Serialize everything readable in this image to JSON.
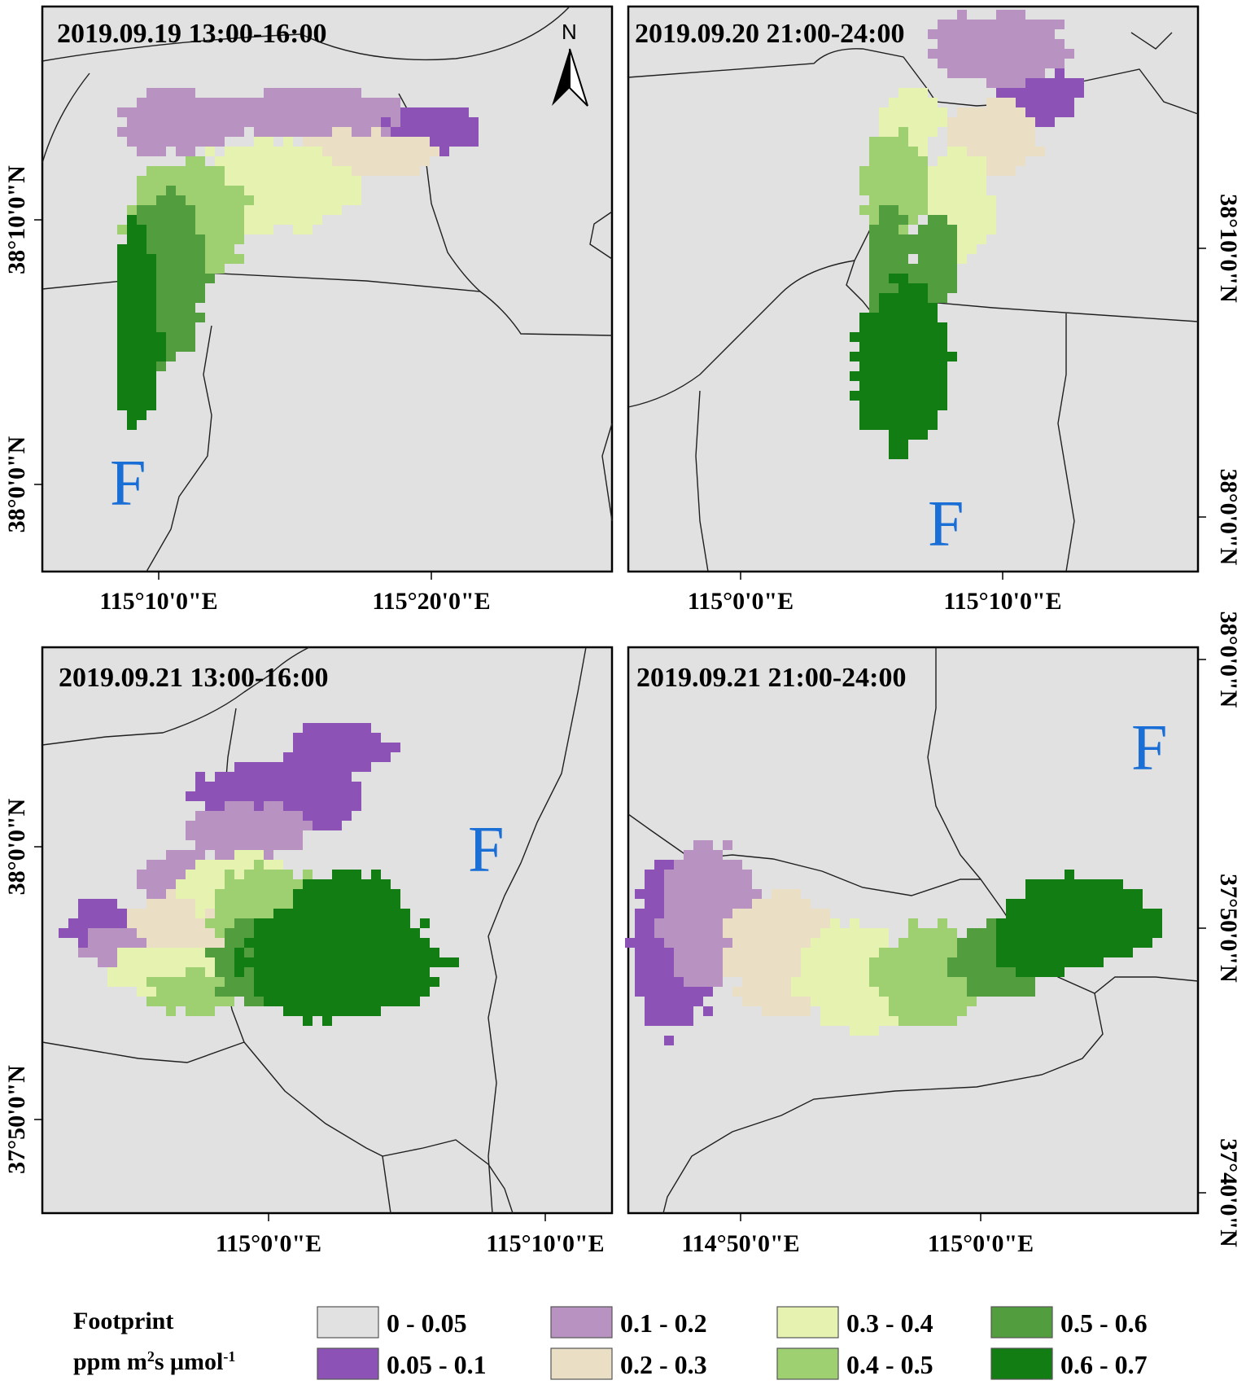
{
  "colors": {
    "background": "#e1e1e1",
    "f_label": "#1a6fd6",
    "classes": [
      "#e1e1e1",
      "#8c52b5",
      "#b893c2",
      "#eadfc5",
      "#e6f2b0",
      "#9ecf70",
      "#529e3e",
      "#127d12"
    ]
  },
  "panels": [
    {
      "title": "2019.09.19 13:00-16:00",
      "f_label": "F",
      "north_label": "N",
      "x_ticks": [
        "115°10'0\"E",
        "115°20'0\"E"
      ],
      "y_ticks": [
        "38°10'0\"N",
        "38°0'0\"N"
      ]
    },
    {
      "title": "2019.09.20 21:00-24:00",
      "f_label": "F",
      "x_ticks": [
        "115°0'0\"E",
        "115°10'0\"E"
      ],
      "y_ticks": [
        "38°10'0\"N",
        "38°0'0\"N"
      ]
    },
    {
      "title": "2019.09.21 13:00-16:00",
      "f_label": "F",
      "x_ticks": [
        "115°0'0\"E",
        "115°10'0\"E"
      ],
      "y_ticks": [
        "38°0'0\"N",
        "37°50'0\"N"
      ]
    },
    {
      "title": "2019.09.21 21:00-24:00",
      "f_label": "F",
      "x_ticks": [
        "114°50'0\"E",
        "115°0'0\"E"
      ],
      "y_ticks": [
        "38°0'0\"N",
        "37°50'0\"N",
        "37°40'0\"N"
      ]
    }
  ],
  "legend": {
    "title_line1": "Footprint",
    "unit_base": "ppm m",
    "unit_sup1": "2",
    "unit_mid": "s μmol",
    "unit_sup2": "-1",
    "classes": [
      {
        "label": "0 - 0.05",
        "color": "#e1e1e1"
      },
      {
        "label": "0.05 - 0.1",
        "color": "#8c52b5"
      },
      {
        "label": "0.1 - 0.2",
        "color": "#b893c2"
      },
      {
        "label": "0.2 - 0.3",
        "color": "#eadfc5"
      },
      {
        "label": "0.3 - 0.4",
        "color": "#e6f2b0"
      },
      {
        "label": "0.4 - 0.5",
        "color": "#9ecf70"
      },
      {
        "label": "0.5 - 0.6",
        "color": "#529e3e"
      },
      {
        "label": "0.6 - 0.7",
        "color": "#127d12"
      }
    ]
  }
}
